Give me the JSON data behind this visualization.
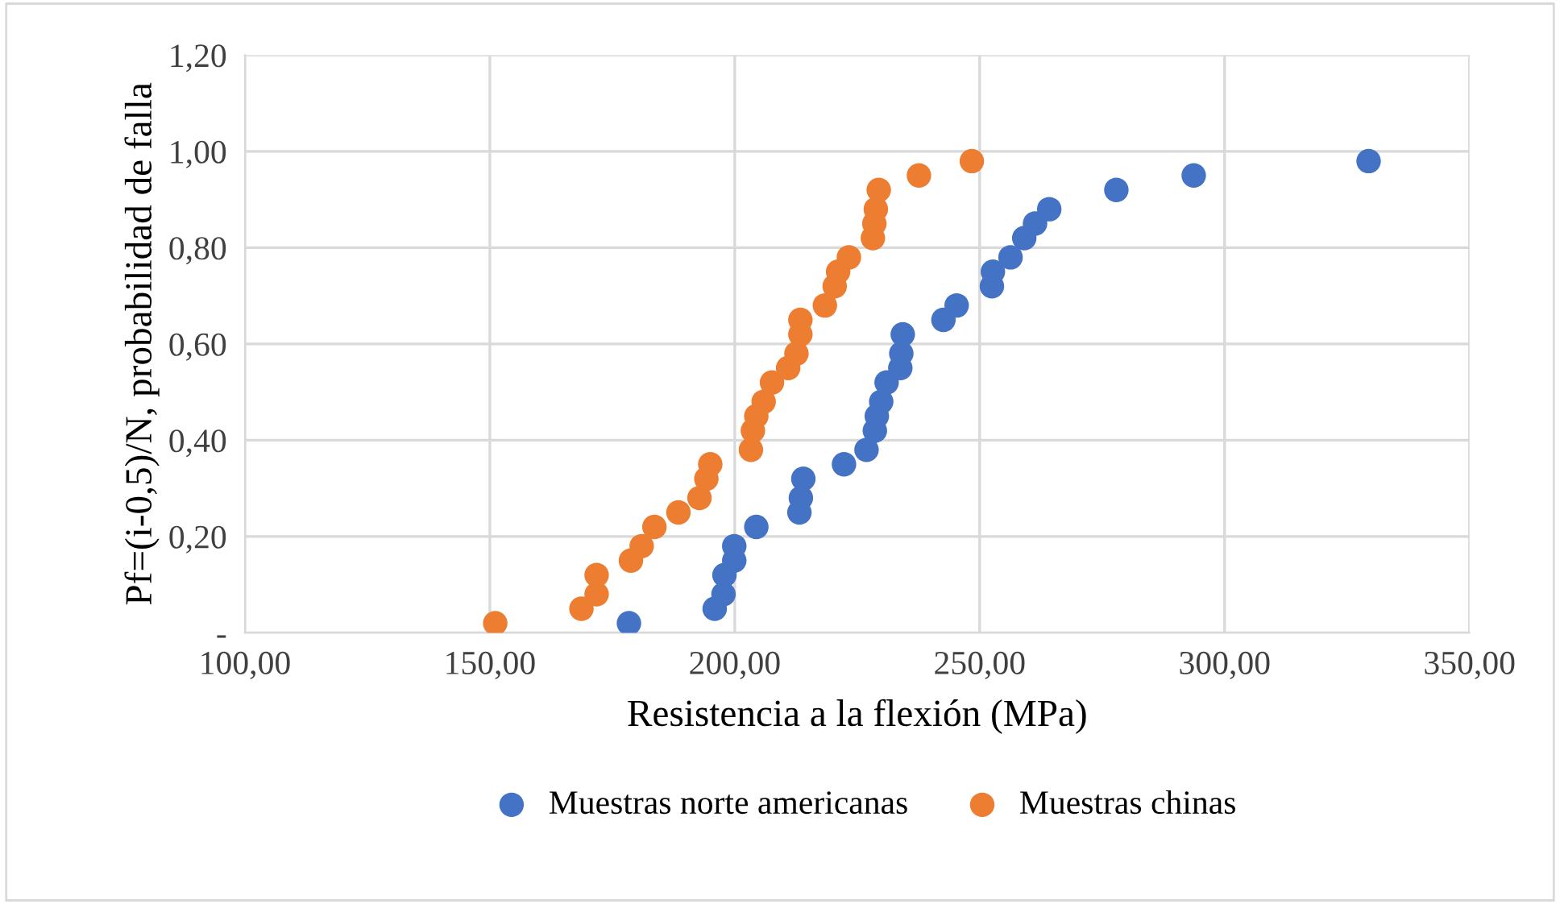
{
  "chart_data": {
    "type": "scatter",
    "xlabel": "Resistencia a la flexión (MPa)",
    "ylabel": "Pf=(i-0,5)/N, probabilidad de falla",
    "xlim": [
      100,
      350
    ],
    "xticks": [
      {
        "value": 100,
        "label": "100,00"
      },
      {
        "value": 150,
        "label": "150,00"
      },
      {
        "value": 200,
        "label": "200,00"
      },
      {
        "value": 250,
        "label": "250,00"
      },
      {
        "value": 300,
        "label": "300,00"
      },
      {
        "value": 350,
        "label": "350,00"
      }
    ],
    "ylim": [
      0,
      1.2
    ],
    "yticks": [
      {
        "value": 0,
        "label": "-"
      },
      {
        "value": 0.2,
        "label": "0,20"
      },
      {
        "value": 0.4,
        "label": "0,40"
      },
      {
        "value": 0.6,
        "label": "0,60"
      },
      {
        "value": 0.8,
        "label": "0,80"
      },
      {
        "value": 1.0,
        "label": "1,00"
      },
      {
        "value": 1.2,
        "label": "1,20"
      }
    ],
    "grid": true,
    "legend": "bottom",
    "marker": "circle",
    "series": [
      {
        "name": "Muestras norte americanas",
        "color": "#4472c4",
        "x": [
          178.4,
          195.9,
          197.7,
          197.9,
          199.9,
          199.9,
          204.4,
          213.2,
          213.5,
          214.0,
          222.3,
          226.9,
          228.6,
          229.0,
          229.9,
          231.0,
          233.8,
          234.0,
          234.3,
          242.6,
          245.3,
          252.5,
          252.7,
          256.3,
          259.1,
          261.3,
          264.2,
          277.9,
          293.7,
          329.4
        ],
        "values": [
          0.02,
          0.05,
          0.08,
          0.12,
          0.15,
          0.18,
          0.22,
          0.25,
          0.28,
          0.32,
          0.35,
          0.38,
          0.42,
          0.45,
          0.48,
          0.52,
          0.55,
          0.58,
          0.62,
          0.65,
          0.68,
          0.72,
          0.75,
          0.78,
          0.82,
          0.85,
          0.88,
          0.92,
          0.95,
          0.98
        ]
      },
      {
        "name": "Muestras chinas",
        "color": "#ed7d31",
        "x": [
          151.1,
          168.7,
          171.8,
          171.8,
          178.8,
          181.0,
          183.6,
          188.5,
          192.8,
          194.2,
          195.0,
          203.3,
          203.7,
          204.4,
          205.9,
          207.6,
          210.9,
          212.6,
          213.4,
          213.4,
          218.4,
          220.4,
          221.1,
          223.3,
          228.2,
          228.5,
          228.8,
          229.4,
          237.6,
          248.4
        ],
        "values": [
          0.02,
          0.05,
          0.08,
          0.12,
          0.15,
          0.18,
          0.22,
          0.25,
          0.28,
          0.32,
          0.35,
          0.38,
          0.42,
          0.45,
          0.48,
          0.52,
          0.55,
          0.58,
          0.62,
          0.65,
          0.68,
          0.72,
          0.75,
          0.78,
          0.82,
          0.85,
          0.88,
          0.92,
          0.95,
          0.98
        ]
      }
    ]
  }
}
